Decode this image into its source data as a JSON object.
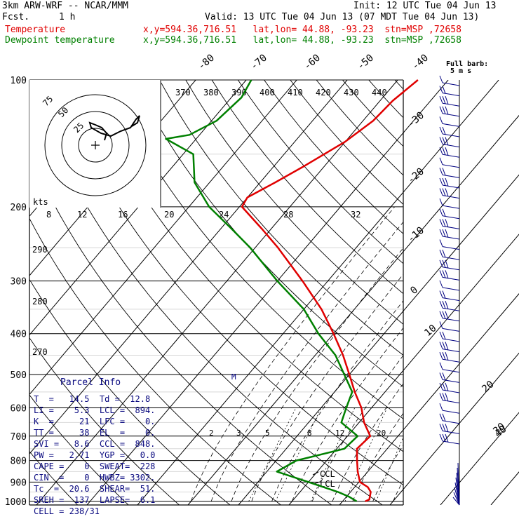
{
  "header": {
    "model": "3km ARW-WRF -- NCAR/MMM",
    "init": "Init: 12 UTC Tue 04 Jun 13",
    "fcst_label": "Fcst.",
    "fcst_value": "1 h",
    "valid": "Valid: 13 UTC Tue 04 Jun 13 (07 MDT Tue 04 Jun 13)"
  },
  "legend": {
    "temperature": {
      "label": "Temperature",
      "info": "x,y=594.36,716.51   lat,lon= 44.88, -93.23  stn=MSP ,72658",
      "color": "#e00000"
    },
    "dewpoint": {
      "label": "Dewpoint temperature",
      "info": "x,y=594.36,716.51   lat,lon= 44.88, -93.23  stn=MSP ,72658",
      "color": "#008000"
    }
  },
  "chart_data": {
    "type": "line",
    "y_axis": {
      "scale": "log-pressure",
      "unit": "hPa",
      "ticks": [
        100,
        200,
        300,
        400,
        500,
        600,
        700,
        800,
        900,
        1000
      ]
    },
    "skewed_temperature_labels": [
      "-80",
      "-70",
      "-60",
      "-50",
      "-40",
      "-30",
      "-20",
      "-10",
      "0",
      "10",
      "20",
      "30",
      "40"
    ],
    "theta_labels": [
      "370",
      "380",
      "390",
      "400",
      "410",
      "420",
      "430",
      "440",
      "290",
      "280",
      "270"
    ],
    "hodograph_speed_labels": [
      "8",
      "12",
      "16",
      "20",
      "24",
      "28",
      "32"
    ],
    "hodograph_ring_labels": [
      "75",
      "50",
      "25"
    ],
    "hodograph_unit": "kts",
    "mixing_ratio_labels": [
      "2",
      "3",
      "5",
      "8",
      "12",
      "20"
    ],
    "wind_barb_title": "Full barb:",
    "wind_barb_unit": "5 m s",
    "ccl_label": "CCL",
    "lcl_label": "LCL",
    "melting_label": "M",
    "series": [
      {
        "name": "Temperature",
        "color": "#e00000",
        "points": [
          [
            1000,
            14.5
          ],
          [
            990,
            15.0
          ],
          [
            950,
            14.0
          ],
          [
            925,
            12.6
          ],
          [
            900,
            10.2
          ],
          [
            850,
            8.0
          ],
          [
            800,
            6.0
          ],
          [
            750,
            4.0
          ],
          [
            700,
            4.5
          ],
          [
            650,
            1.0
          ],
          [
            600,
            -2.0
          ],
          [
            550,
            -6.0
          ],
          [
            500,
            -10.0
          ],
          [
            450,
            -14.5
          ],
          [
            400,
            -20.0
          ],
          [
            350,
            -26.5
          ],
          [
            300,
            -35.0
          ],
          [
            250,
            -45.5
          ],
          [
            225,
            -52.0
          ],
          [
            200,
            -59.5
          ],
          [
            190,
            -60.0
          ],
          [
            175,
            -57.0
          ],
          [
            160,
            -54.0
          ],
          [
            140,
            -50.0
          ],
          [
            125,
            -48.0
          ],
          [
            112,
            -47.5
          ],
          [
            100,
            -46.0
          ]
        ]
      },
      {
        "name": "Dewpoint temperature",
        "color": "#008000",
        "points": [
          [
            1000,
            12.8
          ],
          [
            975,
            10.5
          ],
          [
            950,
            7.5
          ],
          [
            900,
            0.0
          ],
          [
            850,
            -8.0
          ],
          [
            800,
            -6.0
          ],
          [
            750,
            1.5
          ],
          [
            700,
            2.0
          ],
          [
            650,
            -3.5
          ],
          [
            600,
            -5.0
          ],
          [
            550,
            -6.5
          ],
          [
            500,
            -11.0
          ],
          [
            450,
            -16.0
          ],
          [
            400,
            -23.0
          ],
          [
            350,
            -30.0
          ],
          [
            300,
            -40.0
          ],
          [
            250,
            -51.0
          ],
          [
            225,
            -58.0
          ],
          [
            200,
            -66.0
          ],
          [
            175,
            -73.0
          ],
          [
            150,
            -78.0
          ],
          [
            138,
            -86.0
          ],
          [
            135,
            -82.0
          ],
          [
            125,
            -79.0
          ],
          [
            110,
            -78.0
          ],
          [
            100,
            -79.0
          ]
        ]
      }
    ]
  },
  "parcel": {
    "title": "Parcel Info",
    "rows": [
      "T  =   14.5  Td =  12.8",
      "LI =    5.3  LCL =  894.",
      "K  =     21  LFC =    0.",
      "TT =     38  EL  =    0.",
      "SVI =   8.6  CCL =  848.",
      "PW =   2.71  YGP =   0.0",
      "CAPE =    0  SWEAT=  228",
      "CIN  =    0  HWBZ= 3302.",
      "Tc  =  20.6  SHEAR=  51.",
      "SREH =  137  LAPSE=  6.1",
      "CELL = 238/31"
    ]
  }
}
